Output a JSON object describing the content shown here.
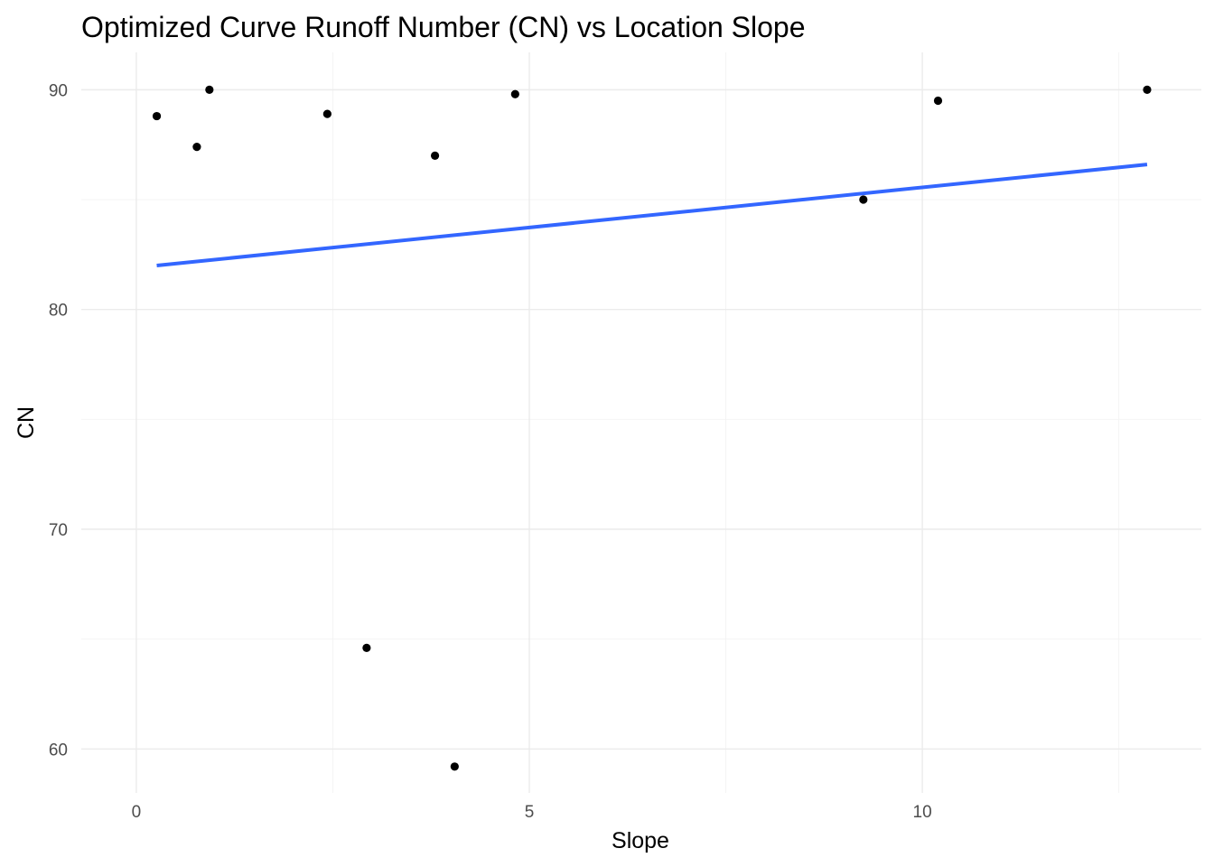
{
  "chart_data": {
    "type": "scatter",
    "title": "Optimized Curve Runoff Number (CN) vs Location Slope",
    "xlabel": "Slope",
    "ylabel": "CN",
    "xlim": [
      -0.7,
      13.55
    ],
    "ylim": [
      58.0,
      91.7
    ],
    "x_ticks": [
      0,
      5,
      10
    ],
    "x_tick_labels": [
      "0",
      "5",
      "10"
    ],
    "x_minor_ticks": [
      2.5,
      7.5,
      12.5
    ],
    "y_ticks": [
      60,
      70,
      80,
      90
    ],
    "y_tick_labels": [
      "60",
      "70",
      "80",
      "90"
    ],
    "y_minor_ticks": [
      65,
      75,
      85
    ],
    "grid": true,
    "legend": "none",
    "points": [
      {
        "x": 0.26,
        "y": 88.8
      },
      {
        "x": 0.77,
        "y": 87.4
      },
      {
        "x": 0.93,
        "y": 90.0
      },
      {
        "x": 2.43,
        "y": 88.9
      },
      {
        "x": 2.93,
        "y": 64.6
      },
      {
        "x": 3.8,
        "y": 87.0
      },
      {
        "x": 4.05,
        "y": 59.2
      },
      {
        "x": 4.82,
        "y": 89.8
      },
      {
        "x": 9.25,
        "y": 85.0
      },
      {
        "x": 10.2,
        "y": 89.5
      },
      {
        "x": 12.86,
        "y": 90.0
      }
    ],
    "trend_line": {
      "method": "linear",
      "x": [
        0.26,
        12.86
      ],
      "y": [
        82.0,
        86.6
      ],
      "color": "#3366ff"
    },
    "point_color": "#000000"
  }
}
